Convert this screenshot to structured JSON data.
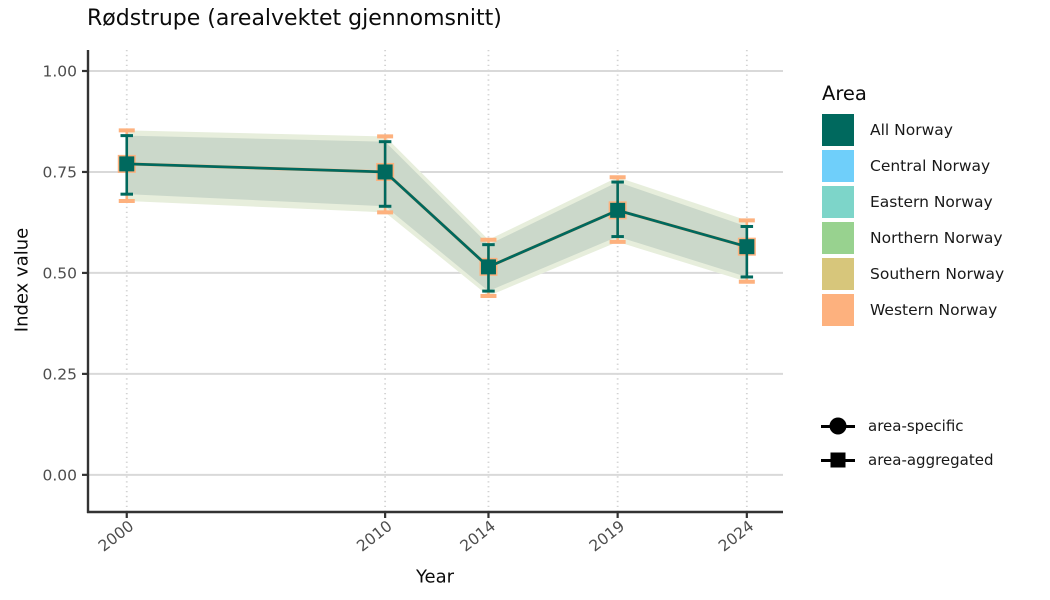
{
  "title": "Rødstrupe (arealvektet gjennomsnitt)",
  "legend_area": {
    "title": "Area",
    "items": [
      {
        "label": "All Norway",
        "color": "#00695E"
      },
      {
        "label": "Central Norway",
        "color": "#6FCFFA"
      },
      {
        "label": "Eastern Norway",
        "color": "#7DD5C9"
      },
      {
        "label": "Northern Norway",
        "color": "#98D28F"
      },
      {
        "label": "Southern Norway",
        "color": "#D7C67B"
      },
      {
        "label": "Western Norway",
        "color": "#FDB17E"
      }
    ]
  },
  "legend_shape": {
    "items": [
      {
        "label": "area-specific",
        "marker": "circle"
      },
      {
        "label": "area-aggregated",
        "marker": "square"
      }
    ]
  },
  "chart_data": {
    "type": "line",
    "title": "Rødstrupe (arealvektet gjennomsnitt)",
    "xlabel": "Year",
    "ylabel": "Index value",
    "x": [
      2000,
      2010,
      2014,
      2019,
      2024
    ],
    "x_tick_labels": [
      "2000",
      "2010",
      "2014",
      "2019",
      "2024"
    ],
    "y_ticks": [
      0,
      0.25,
      0.5,
      0.75,
      1
    ],
    "y_tick_labels": [
      "0.00",
      "0.25",
      "0.50",
      "0.75",
      "1.00"
    ],
    "xlim": [
      1998.5,
      2025.4
    ],
    "ylim": [
      -0.092,
      1.052
    ],
    "grid": {
      "horizontal": "solid",
      "vertical": "dotted"
    },
    "legend_position": "right",
    "series": [
      {
        "name": "Western Norway",
        "role": "underlay",
        "marker": "square",
        "color": "#FDB17E",
        "values": [
          0.77,
          0.75,
          0.515,
          0.655,
          0.565
        ],
        "ci_low": [
          0.678,
          0.65,
          0.443,
          0.577,
          0.478
        ],
        "ci_high": [
          0.853,
          0.838,
          0.582,
          0.737,
          0.63
        ]
      },
      {
        "name": "All Norway",
        "role": "main",
        "marker": "square",
        "color": "#00695E",
        "values": [
          0.77,
          0.75,
          0.515,
          0.655,
          0.565
        ],
        "ci_low": [
          0.695,
          0.665,
          0.455,
          0.59,
          0.49
        ],
        "ci_high": [
          0.84,
          0.825,
          0.57,
          0.725,
          0.615
        ]
      }
    ],
    "ribbons": [
      {
        "name": "outer-band",
        "color": "#E7EEDC",
        "low": [
          0.678,
          0.65,
          0.443,
          0.577,
          0.478
        ],
        "high": [
          0.853,
          0.838,
          0.582,
          0.737,
          0.63
        ]
      },
      {
        "name": "inner-band",
        "color": "#CBD8CA",
        "low": [
          0.695,
          0.665,
          0.455,
          0.59,
          0.49
        ],
        "high": [
          0.84,
          0.825,
          0.57,
          0.725,
          0.615
        ]
      }
    ],
    "colors": {
      "axis_text": "#4D4D4D",
      "axis_line": "#333333",
      "grid_h": "#D9D9D9",
      "grid_v": "#D2D2D2",
      "title": "#0B0B0B"
    }
  }
}
